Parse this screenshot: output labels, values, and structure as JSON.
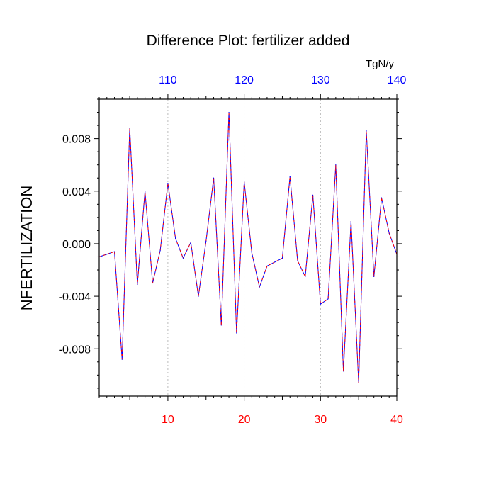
{
  "chart_data": {
    "type": "line",
    "title": "Difference Plot: fertilizer added",
    "ylabel": "NFERTILIZATION",
    "top_axis_units": "TgN/y",
    "xlim": [
      1,
      40
    ],
    "ylim": [
      -0.0116,
      0.011
    ],
    "x_ticks": [
      10,
      20,
      30,
      40
    ],
    "x_tick_labels": [
      "10",
      "20",
      "30",
      "40"
    ],
    "top_ticks": [
      110,
      120,
      130,
      140
    ],
    "top_tick_labels": [
      "110",
      "120",
      "130",
      "140"
    ],
    "top_axis_offset": 100,
    "y_ticks": [
      -0.008,
      -0.004,
      0.0,
      0.004,
      0.008
    ],
    "y_tick_labels": [
      "-0.008",
      "-0.004",
      "0.000",
      "0.004",
      "0.008"
    ],
    "grid": "vertical dotted",
    "colors": {
      "bottom_axis_labels": "#ff0000",
      "top_axis_labels": "#0000ff",
      "series_primary": "#0000ff",
      "series_overlay": "#ff0000"
    },
    "x": [
      1,
      2,
      3,
      4,
      5,
      6,
      7,
      8,
      9,
      10,
      11,
      12,
      13,
      14,
      15,
      16,
      17,
      18,
      19,
      20,
      21,
      22,
      23,
      24,
      25,
      26,
      27,
      28,
      29,
      30,
      31,
      32,
      33,
      34,
      35,
      36,
      37,
      38,
      39,
      40
    ],
    "series": [
      {
        "values": [
          -0.001,
          -0.0008,
          -0.0006,
          -0.0088,
          0.0088,
          -0.0031,
          0.004,
          -0.003,
          -0.0005,
          0.0046,
          0.0004,
          -0.0011,
          0.0001,
          -0.004,
          0.0002,
          0.005,
          -0.0062,
          0.01,
          -0.0068,
          0.0047,
          -0.0007,
          -0.0033,
          -0.0017,
          -0.0014,
          -0.0011,
          0.0051,
          -0.0013,
          -0.0025,
          0.0037,
          -0.0046,
          -0.0042,
          0.006,
          -0.0097,
          0.0017,
          -0.0106,
          0.0086,
          -0.0025,
          0.0035,
          0.0008,
          -0.0008
        ]
      }
    ]
  }
}
